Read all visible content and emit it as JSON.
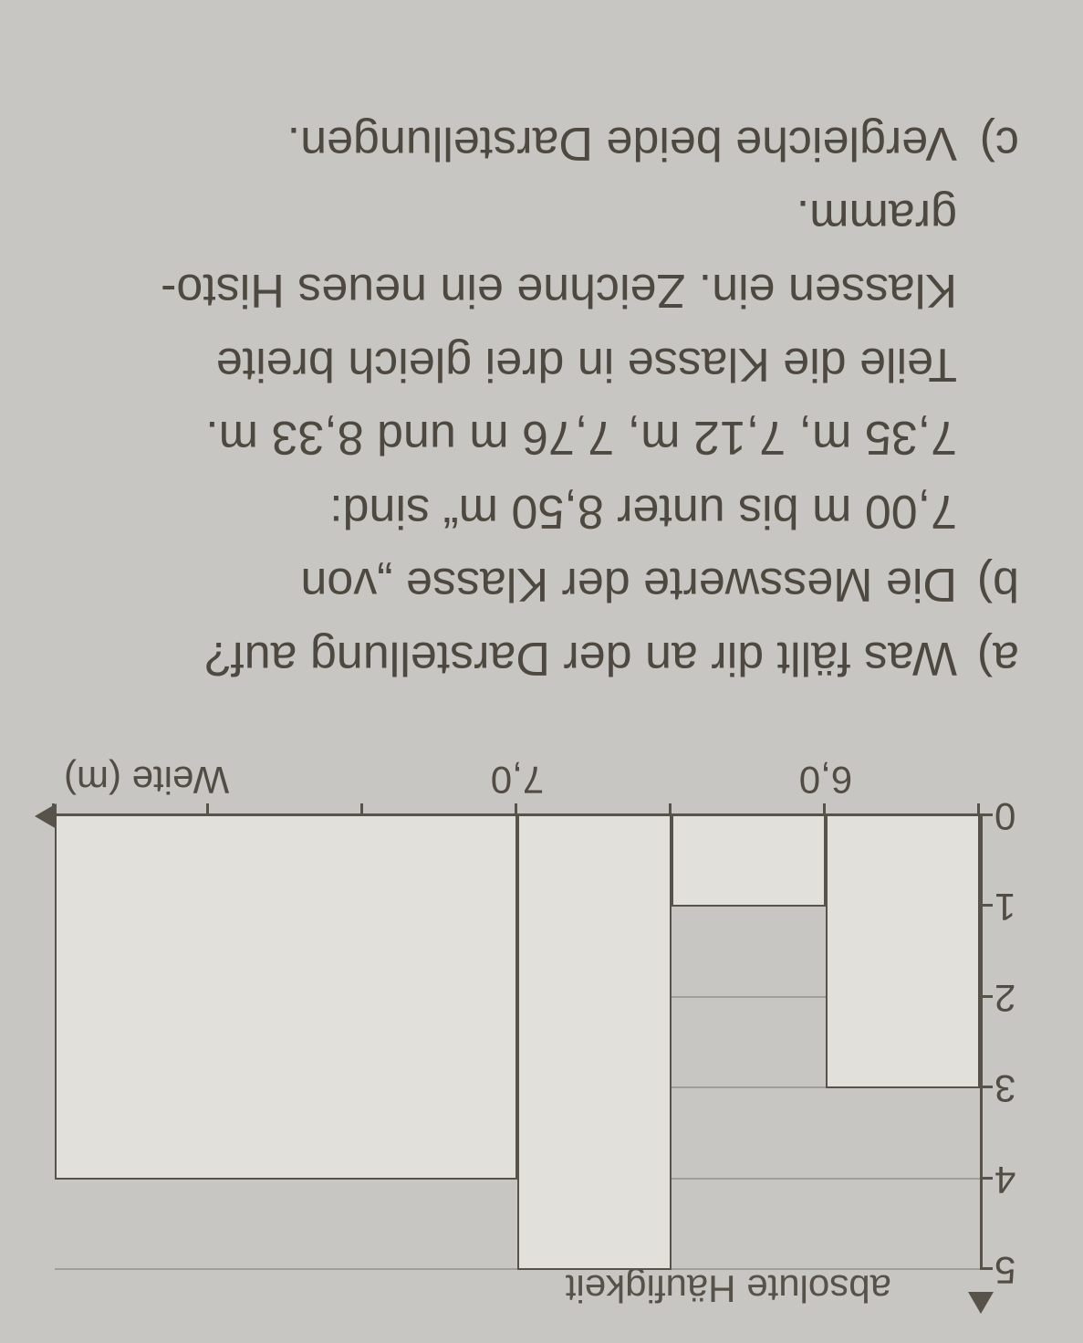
{
  "chart": {
    "type": "bar",
    "y_axis_title": "absolute Häufigkeit",
    "x_axis_title": "Weite (m)",
    "ylim": [
      0,
      5
    ],
    "yticks": [
      0,
      1,
      2,
      3,
      4,
      5
    ],
    "xlim": [
      5.5,
      8.5
    ],
    "xticks_major": [
      5.5,
      6.0,
      6.5,
      7.0,
      7.5,
      8.0,
      8.5
    ],
    "xticks_labeled": [
      {
        "x": 6.0,
        "label": "6,0"
      },
      {
        "x": 7.0,
        "label": "7,0"
      }
    ],
    "bars": [
      {
        "from": 5.5,
        "to": 6.0,
        "value": 3
      },
      {
        "from": 6.0,
        "to": 6.5,
        "value": 1
      },
      {
        "from": 6.5,
        "to": 7.0,
        "value": 5
      },
      {
        "from": 7.0,
        "to": 8.5,
        "value": 4
      }
    ],
    "bar_fill": "#e2e0da",
    "bar_border": "#58534a",
    "axis_color": "#58534a",
    "grid_color": "rgba(90,86,78,0.35)",
    "background": "#c8c6c2",
    "tick_font_size": 42
  },
  "questions": {
    "a_marker": "a)",
    "a_text": "Was fällt dir an der Darstellung auf?",
    "b_marker": "b)",
    "b_line1": "Die Messwerte der Klasse „von",
    "b_line2": "7,00 m bis unter 8,50 m“ sind:",
    "b_line3": "7,35 m, 7,12 m, 7,76 m und 8,33 m.",
    "b_line4": "Teile die Klasse in drei gleich breite",
    "b_line5": "Klassen ein. Zeichne ein neues Histo-",
    "b_line6": "gramm.",
    "c_marker": "c)",
    "c_text": "Vergleiche beide Darstellungen."
  }
}
